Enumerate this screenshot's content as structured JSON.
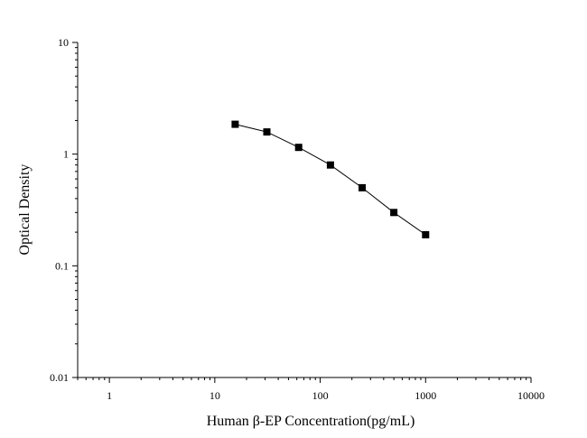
{
  "chart_data": {
    "type": "line",
    "title": "",
    "xlabel": "Human β-EP Concentration(pg/mL)",
    "ylabel": "Optical Density",
    "xscale": "log",
    "yscale": "log",
    "xlim": [
      0.5,
      10000
    ],
    "ylim": [
      0.01,
      10
    ],
    "xticks": [
      1,
      10,
      100,
      1000,
      10000
    ],
    "xtick_labels": [
      "1",
      "10",
      "100",
      "1000",
      "10000"
    ],
    "yticks": [
      0.01,
      0.1,
      1,
      10
    ],
    "ytick_labels": [
      "0.01",
      "0.1",
      "1",
      "10"
    ],
    "grid": false,
    "legend": "none",
    "series": [
      {
        "x": [
          15.6,
          31.2,
          62.5,
          125,
          250,
          500,
          1000
        ],
        "y": [
          1.85,
          1.58,
          1.15,
          0.8,
          0.5,
          0.3,
          0.19
        ]
      }
    ]
  }
}
